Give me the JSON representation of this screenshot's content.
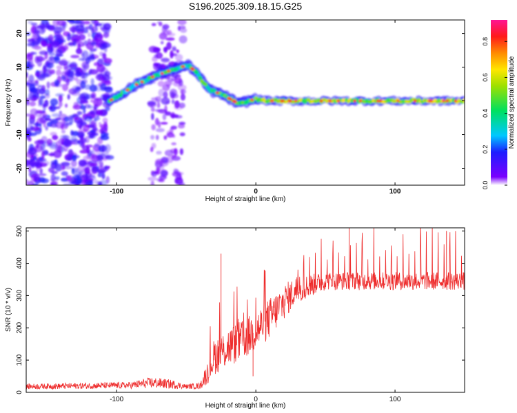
{
  "title": "S196.2025.309.18.15.G25",
  "chart_data": [
    {
      "type": "heatmap",
      "xlabel": "Height of straight line (km)",
      "ylabel": "Frequency (Hz)",
      "xlim": [
        -165,
        150
      ],
      "ylim": [
        -25,
        24
      ],
      "xticks": [
        -100,
        0,
        100
      ],
      "yticks": [
        -20,
        -10,
        0,
        10,
        20
      ],
      "colorbar": {
        "label": "Normalized spectral amplitude",
        "range": [
          0.0,
          0.92
        ],
        "ticks": [
          0.0,
          0.2,
          0.4,
          0.6,
          0.8
        ]
      },
      "ridge": {
        "x": [
          -105,
          -95,
          -85,
          -75,
          -65,
          -55,
          -48,
          -42,
          -37,
          -32,
          -25,
          -18,
          -12,
          -6,
          0,
          10,
          30,
          60,
          100,
          150
        ],
        "y": [
          0,
          2.5,
          5,
          7,
          8.5,
          10,
          10.5,
          8,
          5,
          3,
          2,
          0.5,
          -1,
          0,
          0.5,
          0,
          0,
          0,
          0,
          0
        ]
      },
      "noise_regions": [
        {
          "x_range": [
            -165,
            -105
          ],
          "y_range": [
            -25,
            24
          ],
          "level": 0.3
        },
        {
          "x_range": [
            -75,
            -52
          ],
          "y_range": [
            -25,
            24
          ],
          "level": 0.12
        }
      ]
    },
    {
      "type": "line",
      "xlabel": "Height of straight line (km)",
      "ylabel": "SNR (10 * v/v)",
      "xlim": [
        -165,
        150
      ],
      "ylim": [
        0,
        510
      ],
      "xticks": [
        -100,
        0,
        100
      ],
      "yticks": [
        0,
        100,
        200,
        300,
        400,
        500
      ],
      "color": "#ee2b2b",
      "segments": [
        {
          "x": [
            -165,
            -90,
            -75,
            -60,
            -50,
            -40,
            -35,
            -30,
            -20,
            -10,
            0,
            10,
            20,
            30,
            50,
            100,
            150
          ],
          "baseline": [
            18,
            22,
            30,
            25,
            18,
            20,
            60,
            110,
            140,
            160,
            190,
            230,
            280,
            320,
            345,
            345,
            345
          ],
          "spread": [
            12,
            15,
            25,
            20,
            10,
            15,
            50,
            80,
            90,
            90,
            90,
            90,
            80,
            60,
            40,
            40,
            40
          ]
        }
      ],
      "spikes": [
        {
          "x": -25,
          "y": 430
        },
        {
          "x": -2,
          "y": 50
        },
        {
          "x": 67,
          "y": 510
        },
        {
          "x": 137,
          "y": 500
        }
      ]
    }
  ]
}
